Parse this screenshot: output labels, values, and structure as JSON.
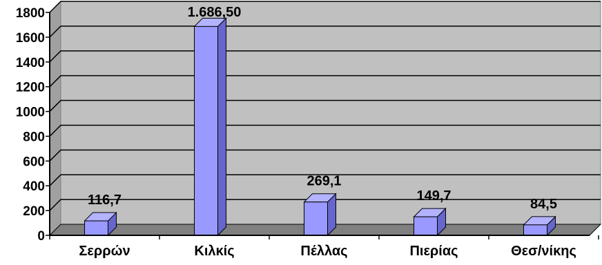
{
  "chart_data": {
    "type": "bar",
    "categories": [
      "Σερρών",
      "Κιλκίς",
      "Πέλλας",
      "Πιερίας",
      "Θεσ/νίκης"
    ],
    "values": [
      116.7,
      1686.5,
      269.1,
      149.7,
      84.5
    ],
    "data_labels": [
      "116,7",
      "1.686,50",
      "269,1",
      "149,7",
      "84,5"
    ],
    "y_ticks": [
      {
        "value": 0,
        "label": "0"
      },
      {
        "value": 200,
        "label": "200"
      },
      {
        "value": 400,
        "label": "400"
      },
      {
        "value": 600,
        "label": "600"
      },
      {
        "value": 800,
        "label": "800"
      },
      {
        "value": 1000,
        "label": "1000"
      },
      {
        "value": 1200,
        "label": "1200"
      },
      {
        "value": 1400,
        "label": "1400"
      },
      {
        "value": 1600,
        "label": "1600"
      },
      {
        "value": 1800,
        "label": "1800"
      }
    ],
    "ylim": [
      0,
      1800
    ],
    "grid": true,
    "legend": "none",
    "title": "",
    "xlabel": "",
    "ylabel": "",
    "colors": {
      "bar_front": "#9999FF",
      "bar_side": "#6666CC",
      "bar_top": "#B3B3FF",
      "plot_back": "#C0C0C0",
      "plot_floor": "#808080",
      "plot_left_wall": "#A0A0A0",
      "grid": "#000000"
    }
  }
}
